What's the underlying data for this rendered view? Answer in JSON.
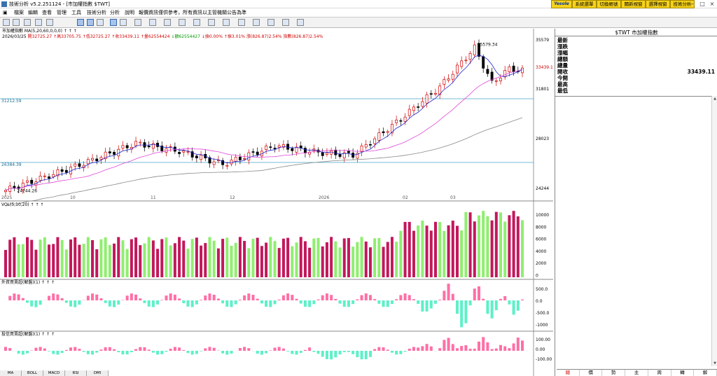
{
  "window": {
    "title": "技術分析 v5.2.251124 - [市加權指數 $TWT]"
  },
  "top_buttons": {
    "brand": "Yesole",
    "items": [
      "系統選單",
      "切換帳號",
      "關新視窗",
      "選擇視窗",
      "技術分析"
    ]
  },
  "menu": {
    "items": [
      "檔案",
      "編輯",
      "查看",
      "管理",
      "工具",
      "技術分析",
      "分析",
      "說明",
      "報價資訊僅供參考，所有資訊以主管機關公告為準"
    ]
  },
  "info_bar": {
    "line1": "市加權指數 MA(5,20,60,0,0,0) ↑ ↑ ↑",
    "date": "2026/03/25",
    "open": "開32725.27",
    "high": "↑高33705.75",
    "low": "↑低32725.27",
    "close": "↑收33439.11",
    "vol": "↑量62554424",
    "amt": "↓額62554427",
    "chg1": "↓換0.00%",
    "chg2": "↑振3.01%",
    "rise": "漲(826.87)2.54%",
    "pts": "指數(826.87)2.54%"
  },
  "chart_data": {
    "type": "line",
    "price_panel": {
      "ylim": [
        24244,
        35579
      ],
      "y_ticks": [
        "35579",
        "33439.1",
        "31801",
        "28023",
        "24244"
      ],
      "x_labels": [
        "2025",
        "10",
        "11",
        "12",
        "2026",
        "02",
        "03"
      ],
      "annotations": [
        "35579.34",
        "24244.26",
        "31212.59",
        "26384.39"
      ],
      "series": [
        {
          "name": "MA(5)"
        },
        {
          "name": "MA(20)"
        },
        {
          "name": "MA(60)"
        }
      ]
    },
    "vol_panel": {
      "label": "VOL(5,10,20) ↑ ↑ ↑",
      "y_ticks": [
        "10000",
        "8000",
        "6000",
        "4000",
        "2000",
        "0"
      ]
    },
    "foreign_panel": {
      "label": "外資買賣超(解盤)(1) ↑ ↑ ↑",
      "y_ticks": [
        "500.0",
        "0.0",
        "-500.0",
        "-1000"
      ]
    },
    "dealer_panel": {
      "label": "投信買賣超(解盤)(1) ↑ ↑ ↑",
      "y_ticks": [
        "100.00",
        "0.00",
        "-100.00"
      ]
    }
  },
  "quote_panel": {
    "title": "$TWT 市加權指數",
    "rows": [
      {
        "label": "最新",
        "value": ""
      },
      {
        "label": "漲跌",
        "value": ""
      },
      {
        "label": "漲幅",
        "value": ""
      },
      {
        "label": "總額",
        "value": ""
      },
      {
        "label": "總量",
        "value": ""
      },
      {
        "label": "開收",
        "value": "33439.11"
      },
      {
        "label": "今開",
        "value": ""
      },
      {
        "label": "最高",
        "value": ""
      },
      {
        "label": "最低",
        "value": ""
      }
    ]
  },
  "bottom_tabs": [
    "總",
    "價",
    "勢",
    "主",
    "周",
    "轉",
    "解"
  ],
  "indicator_tabs": [
    "MA",
    "BOLL",
    "MACD",
    "RSI",
    "DMI"
  ],
  "colors": {
    "up": "#d20000",
    "down": "#000000",
    "vol_up": "#c2185b",
    "vol_down": "#90ee70",
    "foreign_pos": "#ff6fa6",
    "foreign_neg": "#5ef0c8",
    "ma5": "#1f2ad0",
    "ma20": "#e048d8",
    "ma60": "#888888"
  }
}
